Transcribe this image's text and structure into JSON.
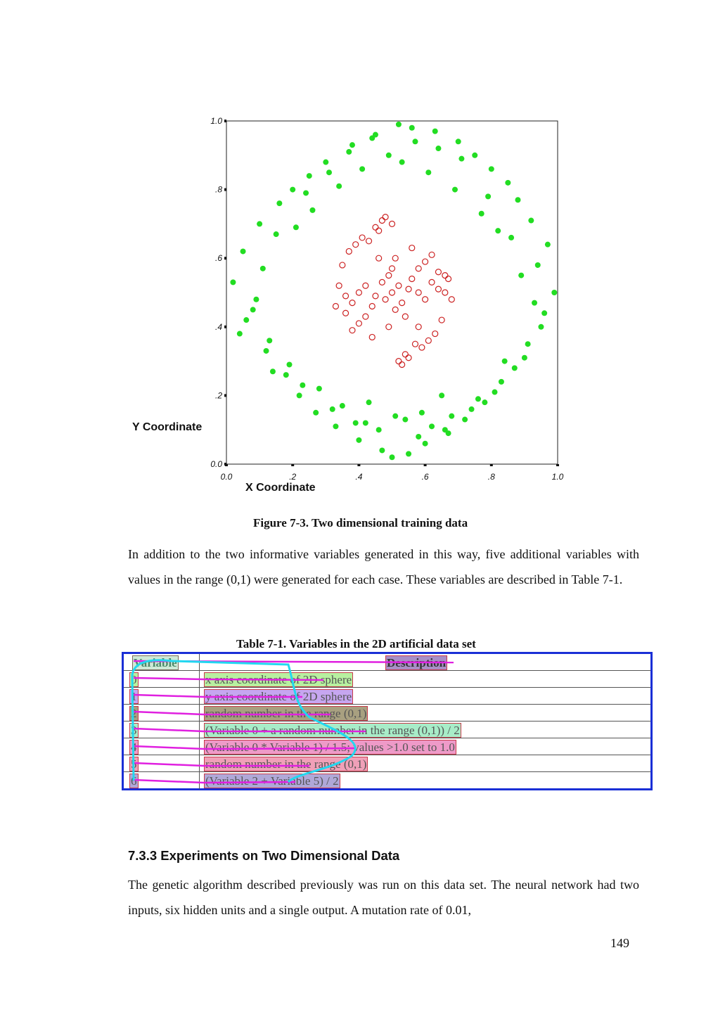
{
  "chart_data": {
    "type": "scatter",
    "xlabel": "X Coordinate",
    "ylabel": "Y Coordinate",
    "xlim": [
      0,
      1
    ],
    "ylim": [
      0,
      1
    ],
    "x_ticks": [
      "0.0",
      ".2",
      ".4",
      ".6",
      ".8",
      "1.0"
    ],
    "y_ticks": [
      "0.0",
      ".2",
      ".4",
      ".6",
      ".8",
      "1.0"
    ],
    "grid": false,
    "series": [
      {
        "color": "#22dd22",
        "marker": "filled-circle",
        "x": [
          0.52,
          0.45,
          0.56,
          0.63,
          0.38,
          0.7,
          0.3,
          0.75,
          0.25,
          0.8,
          0.2,
          0.85,
          0.16,
          0.88,
          0.1,
          0.92,
          0.05,
          0.97,
          0.02,
          0.99,
          0.06,
          0.95,
          0.12,
          0.9,
          0.18,
          0.83,
          0.22,
          0.78,
          0.27,
          0.72,
          0.33,
          0.67,
          0.4,
          0.6,
          0.47,
          0.55,
          0.5,
          0.58,
          0.42,
          0.66,
          0.35,
          0.74,
          0.28,
          0.81,
          0.19,
          0.87,
          0.13,
          0.91,
          0.08,
          0.94,
          0.15,
          0.86,
          0.24,
          0.79,
          0.31,
          0.71,
          0.37,
          0.64,
          0.44,
          0.57,
          0.49,
          0.53,
          0.41,
          0.61,
          0.34,
          0.69,
          0.26,
          0.77,
          0.21,
          0.82,
          0.11,
          0.89,
          0.09,
          0.93,
          0.04,
          0.96,
          0.14,
          0.84,
          0.23,
          0.76,
          0.32,
          0.68,
          0.39,
          0.62,
          0.46,
          0.59,
          0.51,
          0.54,
          0.43,
          0.65
        ],
        "y": [
          0.99,
          0.96,
          0.98,
          0.97,
          0.93,
          0.94,
          0.88,
          0.9,
          0.84,
          0.86,
          0.8,
          0.82,
          0.76,
          0.77,
          0.7,
          0.71,
          0.62,
          0.64,
          0.53,
          0.5,
          0.42,
          0.4,
          0.33,
          0.31,
          0.26,
          0.24,
          0.2,
          0.18,
          0.15,
          0.13,
          0.11,
          0.09,
          0.07,
          0.06,
          0.04,
          0.03,
          0.02,
          0.08,
          0.12,
          0.1,
          0.17,
          0.16,
          0.22,
          0.21,
          0.29,
          0.28,
          0.36,
          0.35,
          0.45,
          0.58,
          0.67,
          0.66,
          0.79,
          0.78,
          0.85,
          0.89,
          0.91,
          0.92,
          0.95,
          0.94,
          0.9,
          0.88,
          0.86,
          0.85,
          0.81,
          0.8,
          0.74,
          0.73,
          0.69,
          0.68,
          0.57,
          0.55,
          0.48,
          0.47,
          0.38,
          0.44,
          0.27,
          0.3,
          0.23,
          0.19,
          0.16,
          0.14,
          0.12,
          0.11,
          0.1,
          0.15,
          0.14,
          0.13,
          0.18,
          0.2
        ]
      },
      {
        "color": "#cc2222",
        "marker": "open-circle",
        "x": [
          0.5,
          0.52,
          0.48,
          0.55,
          0.45,
          0.53,
          0.47,
          0.51,
          0.49,
          0.56,
          0.44,
          0.58,
          0.42,
          0.6,
          0.4,
          0.62,
          0.38,
          0.64,
          0.36,
          0.66,
          0.34,
          0.68,
          0.33,
          0.67,
          0.35,
          0.65,
          0.37,
          0.63,
          0.39,
          0.61,
          0.41,
          0.59,
          0.43,
          0.57,
          0.46,
          0.54,
          0.5,
          0.52,
          0.48,
          0.55,
          0.45,
          0.53,
          0.47,
          0.51,
          0.49,
          0.56,
          0.44,
          0.58,
          0.42,
          0.6,
          0.4,
          0.62,
          0.38,
          0.64,
          0.36,
          0.66,
          0.5,
          0.54,
          0.46,
          0.58
        ],
        "y": [
          0.5,
          0.52,
          0.48,
          0.51,
          0.49,
          0.47,
          0.53,
          0.45,
          0.55,
          0.54,
          0.46,
          0.5,
          0.52,
          0.48,
          0.5,
          0.53,
          0.47,
          0.51,
          0.49,
          0.5,
          0.52,
          0.48,
          0.46,
          0.54,
          0.58,
          0.42,
          0.62,
          0.38,
          0.64,
          0.36,
          0.66,
          0.34,
          0.65,
          0.35,
          0.68,
          0.32,
          0.7,
          0.3,
          0.72,
          0.31,
          0.69,
          0.29,
          0.71,
          0.6,
          0.4,
          0.63,
          0.37,
          0.57,
          0.43,
          0.59,
          0.41,
          0.61,
          0.39,
          0.56,
          0.44,
          0.55,
          0.57,
          0.43,
          0.6,
          0.4
        ]
      }
    ]
  },
  "figure": {
    "caption": "Figure 7-3. Two dimensional training data"
  },
  "paragraph1": "In addition to the two informative variables generated in this way, five additional variables with values in the range (0,1) were generated for each case. These variables are described in Table 7-1.",
  "table": {
    "caption": "Table 7-1. Variables in the 2D artificial data set",
    "headers": {
      "variable": "Variable",
      "description": "Description"
    },
    "rows": [
      {
        "variable": "0",
        "description": "x axis coordinate of 2D sphere",
        "color": "#b8f0a0"
      },
      {
        "variable": "1",
        "description": "y axis coordinate of 2D sphere",
        "color": "#c6a6f0"
      },
      {
        "variable": "2",
        "description": "random number in the range (0,1)",
        "color": "#a8a080"
      },
      {
        "variable": "3",
        "description": "(Variable 0 + a random number in the range (0,1)) / 2",
        "color": "#a8ecc8"
      },
      {
        "variable": "4",
        "description": "(Variable 0 * Variable 1) / 1.5; values >1.0 set to 1.0",
        "color": "#ee9ac8"
      },
      {
        "variable": "5",
        "description": "random number in the range (0,1)",
        "color": "#f0a0b8"
      },
      {
        "variable": "6",
        "description": "(Variable 2 + Variable 5) / 2",
        "color": "#b0a8d8"
      }
    ]
  },
  "section": {
    "heading": "7.3.3 Experiments on Two Dimensional Data",
    "paragraph": "The genetic algorithm described previously was run on this data set. The neural network had two inputs, six hidden units and a single output. A mutation rate of 0.01,"
  },
  "page_number": "149"
}
